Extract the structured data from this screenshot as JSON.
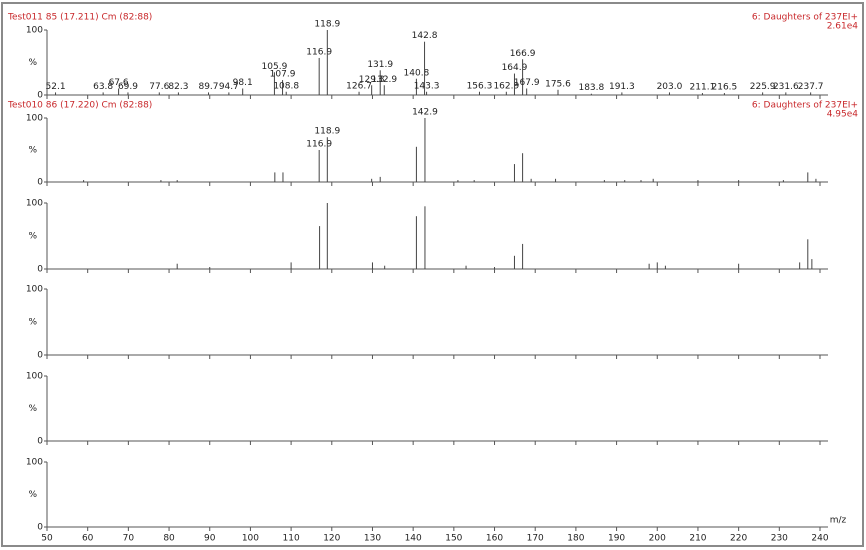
{
  "chart_data": [
    {
      "type": "bar",
      "title": "Test011 85 (17.211) Cm (82:88)",
      "right_title": "6: Daughters of 237EI+",
      "intensity": "2.61e4",
      "x": [
        52.1,
        63.8,
        67.6,
        69.9,
        77.6,
        82.3,
        89.7,
        94.7,
        98.1,
        105.9,
        107.9,
        108.8,
        116.9,
        118.9,
        126.7,
        129.8,
        131.9,
        132.9,
        140.8,
        142.8,
        143.3,
        156.3,
        162.9,
        164.9,
        166.9,
        167.9,
        175.6,
        183.8,
        191.3,
        203.0,
        211.1,
        216.5,
        225.9,
        231.6,
        237.7
      ],
      "x_labels": [
        "52.1",
        "63.8",
        "67.6",
        "69.9",
        "77.6",
        "82.3",
        "89.7",
        "94.7",
        "98.1",
        "105.9",
        "107.9",
        "108.8",
        "116.9",
        "118.9",
        "126.7",
        "129.8",
        "131.9",
        "132.9",
        "140.8",
        "142.8",
        "143.3",
        "156.3",
        "162.9",
        "164.9",
        "166.9",
        "167.9",
        "175.6",
        "183.8",
        "191.3",
        "203.0",
        "211.1",
        "216.5",
        "225.9",
        "231.6",
        "237.7"
      ],
      "values": [
        4,
        4,
        10,
        4,
        4,
        4,
        4,
        4,
        10,
        35,
        23,
        5,
        57,
        100,
        5,
        15,
        38,
        15,
        25,
        82,
        5,
        5,
        5,
        33,
        55,
        10,
        8,
        2,
        4,
        4,
        3,
        3,
        4,
        4,
        4
      ],
      "ylim": [
        0,
        100
      ],
      "yticks": [
        0,
        100
      ],
      "ylabel": "%"
    },
    {
      "type": "bar",
      "title": "Test010 86 (17.220) Cm (82:88)",
      "right_title": "6: Daughters of 237EI+",
      "intensity": "4.95e4",
      "x": [
        59,
        78,
        82,
        106,
        108,
        116.9,
        118.9,
        129.8,
        131.9,
        140.8,
        142.9,
        151,
        155,
        164.9,
        166.9,
        169,
        175,
        187,
        192,
        196,
        199,
        210,
        220,
        231,
        237,
        239
      ],
      "x_labels": [
        null,
        null,
        null,
        null,
        null,
        "116.9",
        "118.9",
        null,
        null,
        null,
        "142.9",
        null,
        null,
        null,
        null,
        null,
        null,
        null,
        null,
        null,
        null,
        null,
        null,
        null,
        null,
        null
      ],
      "values": [
        3,
        3,
        3,
        15,
        15,
        50,
        70,
        5,
        8,
        55,
        100,
        3,
        3,
        28,
        45,
        5,
        5,
        3,
        3,
        3,
        5,
        3,
        3,
        3,
        15,
        5
      ],
      "ylim": [
        0,
        100
      ],
      "yticks": [
        0,
        100
      ],
      "ylabel": "%"
    },
    {
      "type": "bar",
      "x": [
        82,
        90,
        110,
        117,
        118.9,
        130,
        133,
        140.8,
        142.9,
        153,
        160,
        164.9,
        166.9,
        198,
        200,
        202,
        220,
        235,
        237,
        238
      ],
      "values": [
        8,
        3,
        10,
        65,
        100,
        10,
        5,
        80,
        95,
        5,
        3,
        20,
        38,
        8,
        10,
        5,
        8,
        10,
        45,
        15
      ],
      "ylim": [
        0,
        100
      ],
      "yticks": [
        0,
        100
      ],
      "ylabel": "%"
    },
    {
      "type": "bar",
      "x": [],
      "values": [],
      "ylim": [
        0,
        100
      ],
      "yticks": [
        0,
        100
      ],
      "ylabel": "%"
    },
    {
      "type": "bar",
      "x": [],
      "values": [],
      "ylim": [
        0,
        100
      ],
      "yticks": [
        0,
        100
      ],
      "ylabel": "%"
    },
    {
      "type": "bar",
      "x": [],
      "values": [],
      "ylim": [
        0,
        100
      ],
      "yticks": [
        0,
        100
      ],
      "ylabel": "%",
      "xlim": [
        50,
        240
      ],
      "xticks": [
        50,
        60,
        70,
        80,
        90,
        100,
        110,
        120,
        130,
        140,
        150,
        160,
        170,
        180,
        190,
        200,
        210,
        220,
        230,
        240
      ],
      "xlabel": "m/z"
    }
  ]
}
